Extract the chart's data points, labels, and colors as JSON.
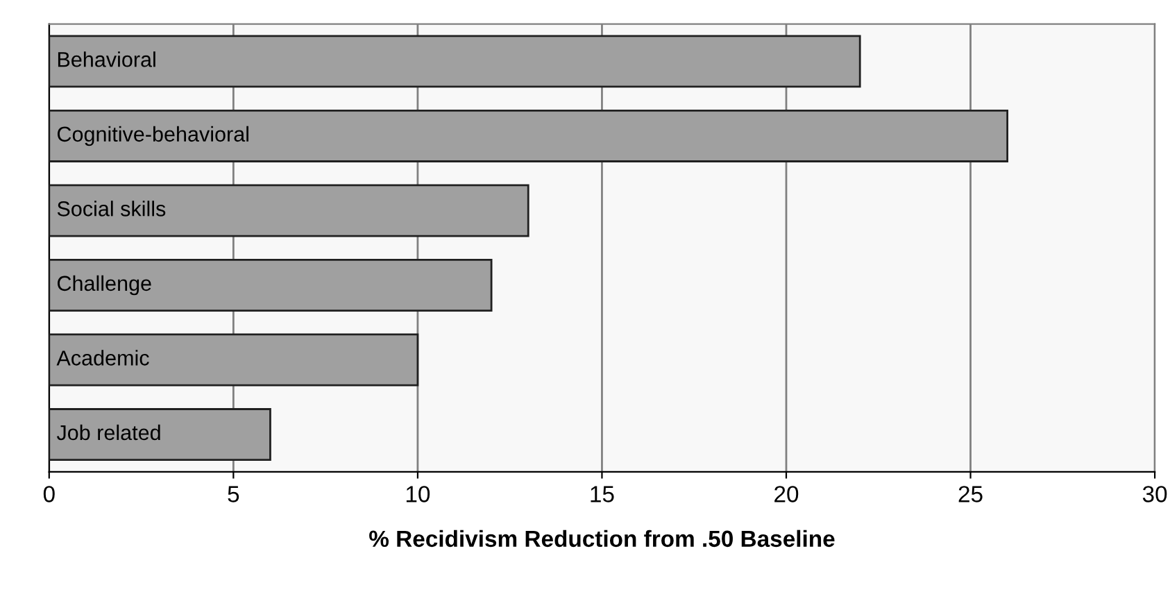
{
  "chart_data": {
    "type": "bar",
    "orientation": "horizontal",
    "categories": [
      "Behavioral",
      "Cognitive-behavioral",
      "Social skills",
      "Challenge",
      "Academic",
      "Job related"
    ],
    "values": [
      22,
      26,
      13,
      12,
      10,
      6
    ],
    "color": "#a0a0a0",
    "xlabel": "% Recidivism Reduction from .50 Baseline",
    "xlim": [
      0,
      30
    ],
    "xticks": [
      0,
      5,
      10,
      15,
      20,
      25,
      30
    ],
    "grid": "x",
    "legend": false
  }
}
